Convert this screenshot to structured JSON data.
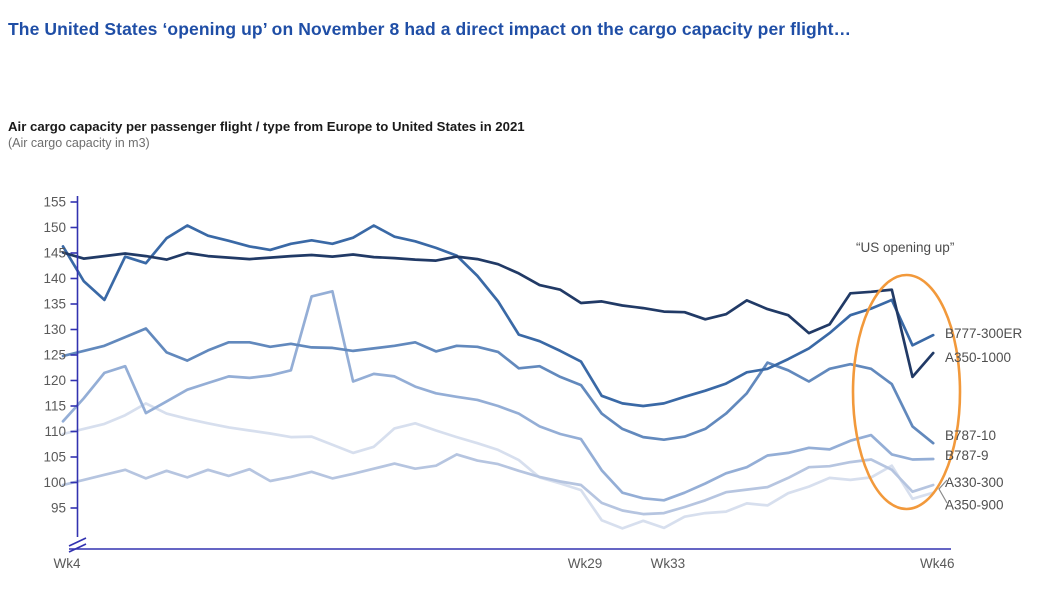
{
  "header": {
    "title": "The United States ‘opening up’ on November 8 had a direct impact on the cargo capacity per flight…",
    "color": "#1f4ea6"
  },
  "chart": {
    "title": "Air cargo capacity per passenger flight / type from Europe to United States in 2021",
    "subtitle": "(Air cargo capacity in m3)",
    "annotation": "“US opening up”",
    "axis_color": "#3232b0",
    "tick_label_color": "#595959",
    "legend_label_color": "#4f4f4f",
    "ellipse_color": "#f2993b"
  },
  "chart_data": {
    "type": "line",
    "title": "Air cargo capacity per passenger flight / type from Europe to United States in 2021",
    "ylabel": "Air cargo capacity in m3",
    "weeks": [
      4,
      5,
      6,
      7,
      8,
      9,
      10,
      11,
      12,
      13,
      14,
      15,
      16,
      17,
      18,
      19,
      20,
      21,
      22,
      23,
      24,
      25,
      26,
      27,
      28,
      29,
      30,
      31,
      32,
      33,
      34,
      35,
      36,
      37,
      38,
      39,
      40,
      41,
      42,
      43,
      44,
      45,
      46
    ],
    "x_ticks": [
      {
        "week": 4,
        "label": "Wk4"
      },
      {
        "week": 29,
        "label": "Wk29"
      },
      {
        "week": 33,
        "label": "Wk33"
      },
      {
        "week": 46,
        "label": "Wk46"
      }
    ],
    "yticks": [
      95,
      100,
      105,
      110,
      115,
      120,
      125,
      130,
      135,
      140,
      145,
      150,
      155
    ],
    "ylim": [
      89,
      157
    ],
    "axis_break": true,
    "grid": false,
    "legend_position": "right",
    "series": [
      {
        "name": "B777-300ER",
        "color": "#3a69a6",
        "values": [
          146.3,
          139.5,
          135.8,
          144.3,
          143,
          147.9,
          150.4,
          148.4,
          147.4,
          146.3,
          145.6,
          146.8,
          147.5,
          146.8,
          148,
          150.4,
          148.2,
          147.3,
          146,
          144.5,
          140.5,
          135.5,
          129,
          127.7,
          125.8,
          123.7,
          117,
          115.5,
          115,
          115.5,
          116.8,
          118,
          119.4,
          121.6,
          122.3,
          124.2,
          126.3,
          129.3,
          132.8,
          134.1,
          135.8,
          126.9,
          128.9
        ]
      },
      {
        "name": "A350-1000",
        "color": "#213a66",
        "values": [
          145.1,
          143.9,
          144.4,
          144.9,
          144.4,
          143.7,
          145,
          144.4,
          144.1,
          143.8,
          144.1,
          144.4,
          144.6,
          144.3,
          144.7,
          144.2,
          144,
          143.7,
          143.5,
          144.3,
          143.8,
          142.8,
          141,
          138.7,
          137.8,
          135.2,
          135.5,
          134.7,
          134.2,
          133.5,
          133.4,
          132,
          133,
          135.7,
          134,
          132.8,
          129.3,
          131,
          137.1,
          137.4,
          137.8,
          120.7,
          125.4
        ]
      },
      {
        "name": "B787-10",
        "color": "#6289bd",
        "values": [
          124.8,
          125.8,
          126.8,
          128.5,
          130.2,
          125.5,
          123.9,
          125.9,
          127.5,
          127.5,
          126.6,
          127.2,
          126.5,
          126.4,
          125.8,
          126.3,
          126.8,
          127.5,
          125.7,
          126.8,
          126.6,
          125.6,
          122.4,
          122.8,
          120.7,
          119.1,
          113.5,
          110.5,
          108.9,
          108.4,
          109,
          110.5,
          113.5,
          117.5,
          123.5,
          122,
          119.8,
          122.3,
          123.2,
          122.3,
          119.3,
          111,
          107.7
        ]
      },
      {
        "name": "B787-9",
        "color": "#94aed6",
        "values": [
          112,
          116.5,
          121.5,
          122.8,
          113.6,
          115.9,
          118.2,
          119.5,
          120.8,
          120.5,
          121,
          122,
          136.5,
          137.5,
          119.8,
          121.3,
          120.8,
          118.8,
          117.5,
          116.8,
          116.2,
          115,
          113.5,
          111,
          109.5,
          108.5,
          102.4,
          98,
          96.9,
          96.5,
          98,
          99.8,
          101.8,
          103,
          105.3,
          105.8,
          106.8,
          106.5,
          108.2,
          109.3,
          105.5,
          104.5,
          104.6
        ]
      },
      {
        "name": "A330-300",
        "color": "#b6c5e0",
        "values": [
          99.5,
          100.5,
          101.5,
          102.5,
          100.8,
          102.3,
          101,
          102.5,
          101.3,
          102.6,
          100.3,
          101.1,
          102.1,
          100.8,
          101.7,
          102.7,
          103.7,
          102.7,
          103.3,
          105.5,
          104.3,
          103.6,
          102.3,
          101.1,
          100.2,
          99.5,
          96,
          94.5,
          93.8,
          94,
          95.2,
          96.5,
          98.1,
          98.6,
          99.1,
          100.9,
          103,
          103.2,
          104,
          104.5,
          102.5,
          98.2,
          99.5
        ]
      },
      {
        "name": "A350-900",
        "color": "#d7dfee",
        "values": [
          109.5,
          110.5,
          111.5,
          113.2,
          115.5,
          113.5,
          112.5,
          111.6,
          110.8,
          110.2,
          109.6,
          108.9,
          109,
          107.4,
          105.8,
          107,
          110.6,
          111.6,
          110.2,
          108.9,
          107.7,
          106.4,
          104.4,
          101,
          99.8,
          98.5,
          92.6,
          91,
          92.5,
          91.1,
          93.3,
          94,
          94.3,
          95.9,
          95.5,
          97.9,
          99.2,
          100.9,
          100.5,
          101,
          103.3,
          96.8,
          98
        ]
      }
    ],
    "z_order": [
      "A350-900",
      "A330-300",
      "B787-9",
      "B787-10",
      "B777-300ER",
      "A350-1000"
    ]
  }
}
